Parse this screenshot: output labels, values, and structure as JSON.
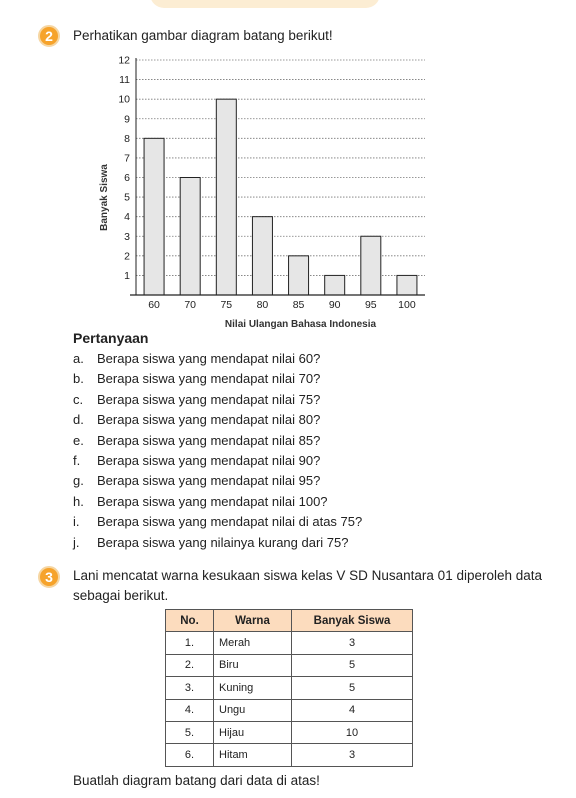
{
  "decor_color": "#fbe8c8",
  "accent_color": "#f6a32b",
  "q2": {
    "number": "2",
    "prompt": "Perhatikan gambar diagram batang berikut!"
  },
  "chart_data": {
    "type": "bar",
    "categories": [
      "60",
      "70",
      "75",
      "80",
      "85",
      "90",
      "95",
      "100"
    ],
    "values": [
      8,
      6,
      10,
      4,
      2,
      1,
      3,
      1
    ],
    "xlabel": "Nilai Ulangan Bahasa Indonesia",
    "ylabel": "Banyak Siswa",
    "ylim": [
      0,
      12
    ],
    "yticks": [
      1,
      2,
      3,
      4,
      5,
      6,
      7,
      8,
      9,
      10,
      11,
      12
    ],
    "grid": "horizontal dotted",
    "bar_color": "#e6e6e6",
    "bar_edge_color": "#222222"
  },
  "questions": {
    "title": "Pertanyaan",
    "items": [
      {
        "letter": "a.",
        "text": "Berapa siswa yang mendapat nilai 60?"
      },
      {
        "letter": "b.",
        "text": "Berapa siswa yang mendapat nilai 70?"
      },
      {
        "letter": "c.",
        "text": "Berapa siswa yang mendapat nilai 75?"
      },
      {
        "letter": "d.",
        "text": "Berapa siswa yang mendapat nilai 80?"
      },
      {
        "letter": "e.",
        "text": "Berapa siswa yang mendapat nilai 85?"
      },
      {
        "letter": "f.",
        "text": "Berapa siswa yang mendapat nilai 90?"
      },
      {
        "letter": "g.",
        "text": "Berapa siswa yang mendapat nilai 95?"
      },
      {
        "letter": "h.",
        "text": "Berapa siswa yang mendapat nilai 100?"
      },
      {
        "letter": "i.",
        "text": "Berapa siswa yang mendapat nilai di atas 75?"
      },
      {
        "letter": "j.",
        "text": "Berapa siswa yang nilainya kurang dari 75?"
      }
    ]
  },
  "q3": {
    "number": "3",
    "prompt": "Lani mencatat warna kesukaan siswa kelas V SD Nusantara 01 diperoleh data sebagai berikut.",
    "table": {
      "headers": [
        "No.",
        "Warna",
        "Banyak Siswa"
      ],
      "header_color": "#fcdcbe",
      "rows": [
        [
          "1.",
          "Merah",
          "3"
        ],
        [
          "2.",
          "Biru",
          "5"
        ],
        [
          "3.",
          "Kuning",
          "5"
        ],
        [
          "4.",
          "Ungu",
          "4"
        ],
        [
          "5.",
          "Hijau",
          "10"
        ],
        [
          "6.",
          "Hitam",
          "3"
        ]
      ]
    },
    "instruction": "Buatlah diagram batang dari data di atas!"
  }
}
